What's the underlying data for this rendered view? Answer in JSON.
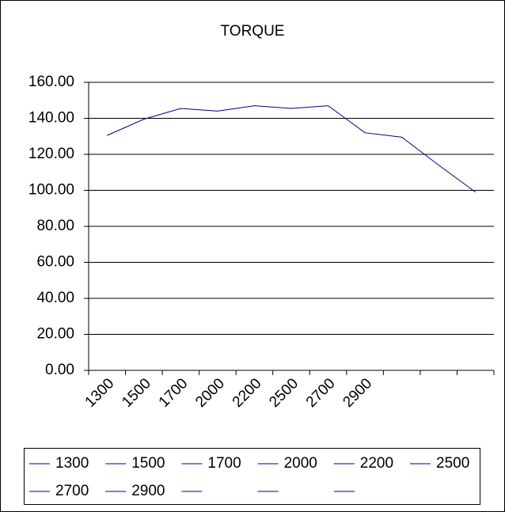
{
  "chart_data": {
    "type": "line",
    "title": "TORQUE",
    "categories": [
      "1300",
      "1500",
      "1700",
      "2000",
      "2200",
      "2500",
      "2700",
      "2900",
      null,
      null,
      null
    ],
    "values": [
      130.5,
      139.5,
      145.5,
      144,
      147,
      145.5,
      147,
      132,
      129.5,
      114,
      99
    ],
    "color": "#000080",
    "ylim": [
      0,
      160
    ],
    "yticks": [
      {
        "value": 0,
        "label": "0.00"
      },
      {
        "value": 20,
        "label": "20.00"
      },
      {
        "value": 40,
        "label": "40.00"
      },
      {
        "value": 60,
        "label": "60.00"
      },
      {
        "value": 80,
        "label": "80.00"
      },
      {
        "value": 100,
        "label": "100.00"
      },
      {
        "value": 120,
        "label": "120.00"
      },
      {
        "value": 140,
        "label": "140.00"
      },
      {
        "value": 160,
        "label": "160.00"
      }
    ],
    "grid": true,
    "legend": "bottom"
  }
}
